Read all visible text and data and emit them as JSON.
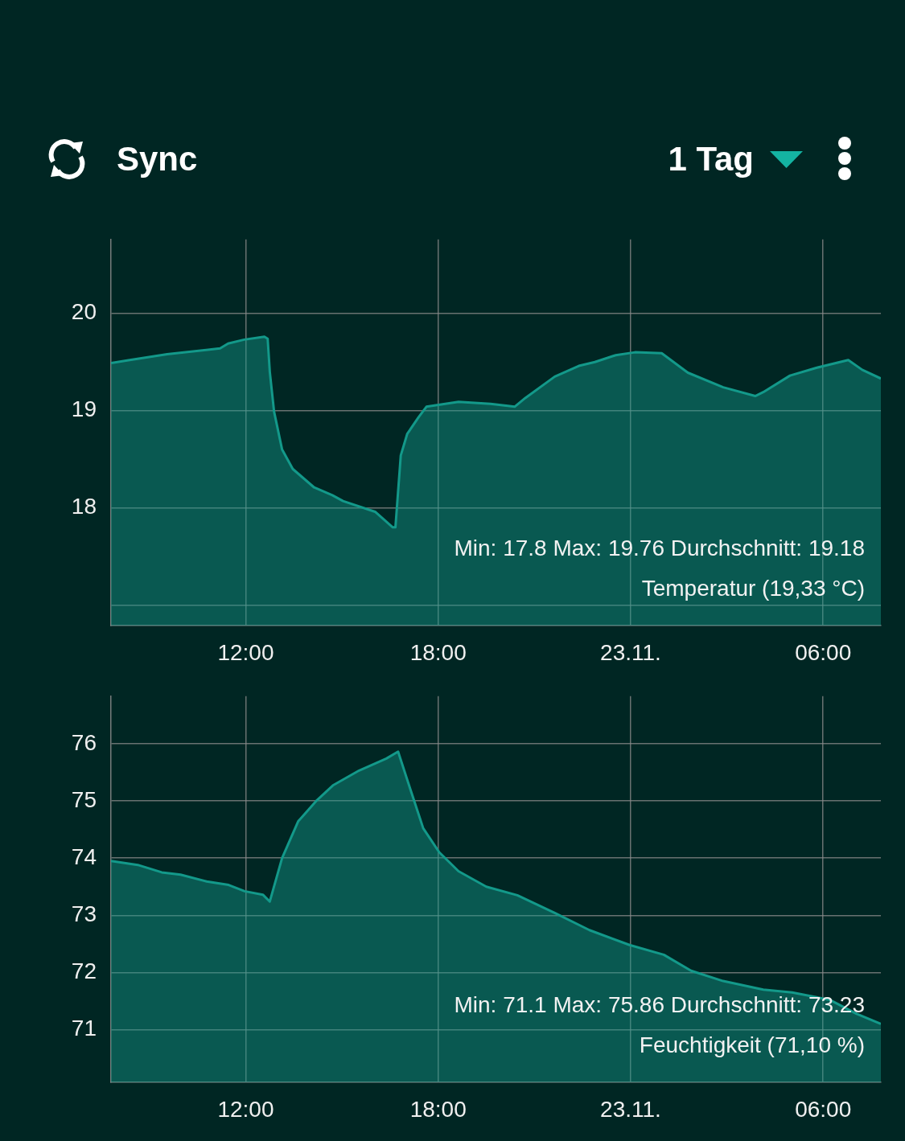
{
  "chart_data": [
    {
      "type": "other",
      "annotations": [
        "Sync",
        "1 Tag"
      ]
    },
    {
      "type": "area",
      "x": [
        "--11-22T07:48",
        "--11-22T08:23",
        "--11-22T09:33",
        "--11-22T11:12",
        "--11-22T11:27",
        "--11-22T11:57",
        "--11-22T12:35",
        "--11-22T12:41",
        "--11-22T12:45",
        "--11-22T12:53",
        "--11-22T13:08",
        "--11-22T13:28",
        "--11-22T14:08",
        "--11-22T14:42",
        "--11-22T15:02",
        "--11-22T16:02",
        "--11-22T16:35",
        "--11-22T16:40",
        "--11-22T16:50",
        "--11-22T17:02",
        "--11-22T17:23",
        "--11-22T17:38",
        "--11-22T18:38",
        "--11-22T19:38",
        "--11-22T20:23",
        "--11-22T20:43",
        "--11-22T21:38",
        "--11-22T22:23",
        "--11-22T22:53",
        "--11-22T23:32",
        "--11-23T00:08",
        "--11-23T00:58",
        "--11-23T01:47",
        "--11-23T02:53",
        "--11-23T03:53",
        "--11-23T04:08",
        "--11-23T04:58",
        "--11-23T05:47",
        "--11-23T06:47",
        "--11-23T07:13",
        "--11-23T07:48"
      ],
      "values": [
        19.49,
        19.52,
        19.58,
        19.64,
        19.69,
        19.73,
        19.76,
        19.74,
        19.4,
        18.99,
        18.6,
        18.4,
        18.21,
        18.13,
        18.07,
        17.96,
        17.8,
        17.8,
        18.54,
        18.76,
        18.93,
        19.04,
        19.09,
        19.07,
        19.04,
        19.13,
        19.35,
        19.46,
        19.5,
        19.57,
        19.6,
        19.59,
        19.39,
        19.24,
        19.15,
        19.19,
        19.36,
        19.44,
        19.52,
        19.42,
        19.33
      ],
      "color": "#13998a",
      "xlim": [
        "--11-22T07:48",
        "--11-23T07:48"
      ],
      "xticks": [
        {
          "value": "--11-22T12:00",
          "label": "12:00"
        },
        {
          "value": "--11-22T18:00",
          "label": "18:00"
        },
        {
          "value": "--11-23T00:00",
          "label": "23.11."
        },
        {
          "value": "--11-23T06:00",
          "label": "06:00"
        }
      ],
      "ylim": [
        16.79,
        20.76
      ],
      "yticks": [
        {
          "value": 17,
          "label": null
        },
        18,
        19,
        20
      ],
      "grid": true,
      "annotations": [
        "Min: 17.8 Max: 19.76 Durchschnitt: 19.18",
        "Temperatur (19,33 °C)"
      ]
    },
    {
      "type": "area",
      "x": [
        "--11-22T07:48",
        "--11-22T08:38",
        "--11-22T09:23",
        "--11-22T09:58",
        "--11-22T10:47",
        "--11-22T11:28",
        "--11-22T11:58",
        "--11-22T12:32",
        "--11-22T12:45",
        "--11-22T13:08",
        "--11-22T13:38",
        "--11-22T14:13",
        "--11-22T14:43",
        "--11-22T15:32",
        "--11-22T16:23",
        "--11-22T16:45",
        "--11-22T17:08",
        "--11-22T17:32",
        "--11-22T18:02",
        "--11-22T18:38",
        "--11-22T19:30",
        "--11-22T20:28",
        "--11-22T21:38",
        "--11-22T22:43",
        "--11-22T23:58",
        "--11-23T01:02",
        "--11-23T01:53",
        "--11-23T02:53",
        "--11-23T04:08",
        "--11-23T05:02",
        "--11-23T06:13",
        "--11-23T07:02",
        "--11-23T07:48"
      ],
      "values": [
        73.95,
        73.88,
        73.75,
        73.71,
        73.59,
        73.53,
        73.42,
        73.36,
        73.24,
        74.0,
        74.64,
        75.01,
        75.27,
        75.53,
        75.74,
        75.86,
        75.2,
        74.52,
        74.1,
        73.77,
        73.5,
        73.35,
        73.04,
        72.74,
        72.48,
        72.31,
        72.03,
        71.85,
        71.7,
        71.65,
        71.52,
        71.28,
        71.1
      ],
      "color": "#13998a",
      "xlim": [
        "--11-22T07:48",
        "--11-23T07:48"
      ],
      "xticks": [
        {
          "value": "--11-22T12:00",
          "label": "12:00"
        },
        {
          "value": "--11-22T18:00",
          "label": "18:00"
        },
        {
          "value": "--11-23T00:00",
          "label": "23.11."
        },
        {
          "value": "--11-23T06:00",
          "label": "06:00"
        }
      ],
      "ylim": [
        70.08,
        76.83
      ],
      "yticks": [
        71,
        72,
        73,
        74,
        75,
        76
      ],
      "grid": true,
      "annotations": [
        "Min: 71.1 Max: 75.86 Durchschnitt: 73.23",
        "Feuchtigkeit (71,10 %)"
      ]
    }
  ]
}
